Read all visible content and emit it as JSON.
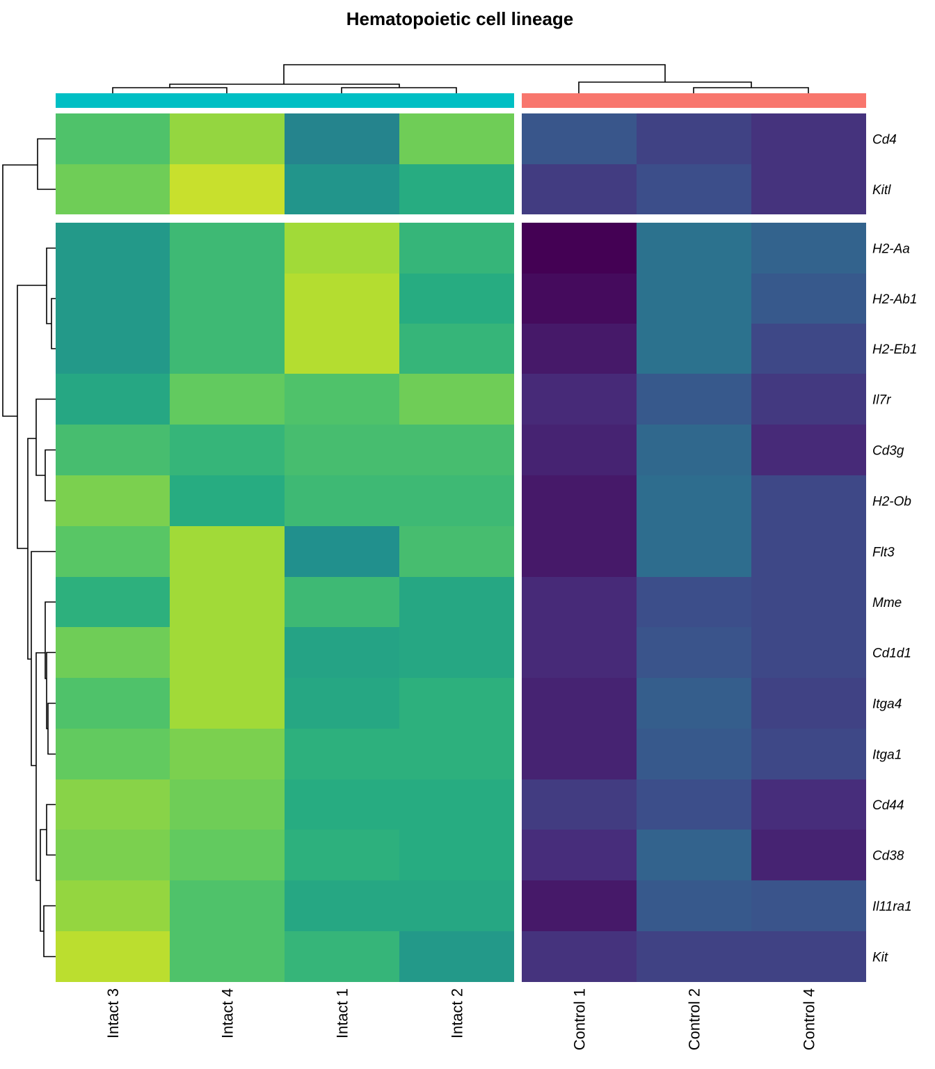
{
  "chart_data": {
    "type": "heatmap",
    "title": "Hematopoietic cell lineage",
    "columns": [
      "Intact 3",
      "Intact 4",
      "Intact 1",
      "Intact 2",
      "Control 1",
      "Control 2",
      "Control 4"
    ],
    "column_groups": [
      {
        "columns": [
          "Intact 3",
          "Intact 4",
          "Intact 1",
          "Intact 2"
        ],
        "color": "#00BFC4"
      },
      {
        "columns": [
          "Control 1",
          "Control 2",
          "Control 4"
        ],
        "color": "#F8766D"
      }
    ],
    "rows": [
      "Cd4",
      "Kitl",
      "H2-Aa",
      "H2-Ab1",
      "H2-Eb1",
      "Il7r",
      "Cd3g",
      "H2-Ob",
      "Flt3",
      "Mme",
      "Cd1d1",
      "Itga4",
      "Itga1",
      "Cd44",
      "Cd38",
      "Il11ra1",
      "Kit"
    ],
    "row_split_after": 2,
    "colormap": "viridis",
    "values": [
      [
        0.72,
        0.84,
        0.45,
        0.78,
        0.27,
        0.2,
        0.15
      ],
      [
        0.78,
        0.92,
        0.52,
        0.62,
        0.18,
        0.24,
        0.15
      ],
      [
        0.54,
        0.68,
        0.86,
        0.66,
        0.0,
        0.38,
        0.32
      ],
      [
        0.54,
        0.68,
        0.89,
        0.62,
        0.03,
        0.38,
        0.28
      ],
      [
        0.54,
        0.68,
        0.89,
        0.66,
        0.07,
        0.38,
        0.22
      ],
      [
        0.6,
        0.76,
        0.72,
        0.78,
        0.12,
        0.28,
        0.17
      ],
      [
        0.7,
        0.66,
        0.7,
        0.7,
        0.1,
        0.34,
        0.12
      ],
      [
        0.8,
        0.62,
        0.68,
        0.68,
        0.07,
        0.36,
        0.22
      ],
      [
        0.74,
        0.86,
        0.5,
        0.7,
        0.07,
        0.36,
        0.22
      ],
      [
        0.64,
        0.86,
        0.68,
        0.6,
        0.12,
        0.24,
        0.22
      ],
      [
        0.78,
        0.86,
        0.58,
        0.6,
        0.12,
        0.26,
        0.22
      ],
      [
        0.72,
        0.86,
        0.6,
        0.64,
        0.1,
        0.3,
        0.2
      ],
      [
        0.76,
        0.8,
        0.64,
        0.64,
        0.1,
        0.28,
        0.22
      ],
      [
        0.82,
        0.78,
        0.62,
        0.62,
        0.18,
        0.24,
        0.13
      ],
      [
        0.8,
        0.76,
        0.64,
        0.62,
        0.13,
        0.32,
        0.1
      ],
      [
        0.84,
        0.72,
        0.6,
        0.6,
        0.07,
        0.28,
        0.26
      ],
      [
        0.9,
        0.72,
        0.66,
        0.54,
        0.15,
        0.2,
        0.2
      ]
    ]
  }
}
